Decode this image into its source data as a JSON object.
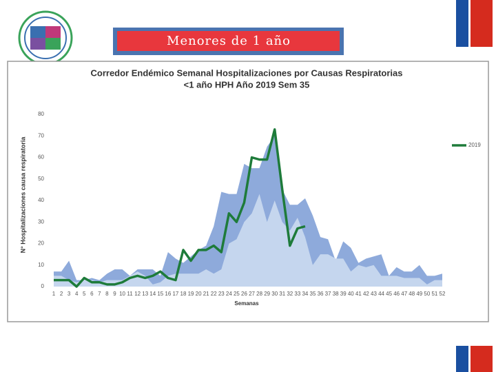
{
  "slide_title": "Menores de 1 año",
  "chart_data": {
    "type": "area",
    "title": "Corredor Endémico Semanal Hospitalizaciones por Causas Respiratorias",
    "subtitle": "<1 año HPH Año 2019 Sem 35",
    "xlabel": "Semanas",
    "ylabel": "N° Hospitalizaciones causa respiratoria",
    "categories": [
      "1",
      "2",
      "3",
      "4",
      "5",
      "6",
      "7",
      "8",
      "9",
      "10",
      "11",
      "12",
      "13",
      "14",
      "15",
      "16",
      "17",
      "18",
      "19",
      "20",
      "21",
      "22",
      "23",
      "24",
      "25",
      "26",
      "27",
      "28",
      "29",
      "30",
      "31",
      "32",
      "33",
      "34",
      "35",
      "36",
      "37",
      "38",
      "39",
      "40",
      "41",
      "42",
      "43",
      "44",
      "45",
      "46",
      "47",
      "48",
      "49",
      "50",
      "51",
      "52"
    ],
    "series": [
      {
        "color": "#8eaadb",
        "values": [
          7,
          7,
          12,
          3,
          3,
          4,
          3,
          6,
          8,
          8,
          5,
          8,
          8,
          8,
          5,
          16,
          13,
          11,
          14,
          17,
          19,
          28,
          44,
          43,
          43,
          57,
          55,
          55,
          65,
          70,
          45,
          38,
          38,
          41,
          33,
          23,
          22,
          12,
          21,
          18,
          11,
          13,
          14,
          15,
          5,
          9,
          7,
          7,
          10,
          5,
          5,
          6
        ]
      },
      {
        "color": "#c5d6ee",
        "values": [
          5,
          5,
          3,
          2,
          3,
          3,
          2,
          3,
          3,
          3,
          5,
          7,
          5,
          1,
          2,
          5,
          6,
          6,
          6,
          6,
          8,
          6,
          8,
          20,
          22,
          30,
          34,
          43,
          30,
          40,
          30,
          26,
          32,
          23,
          10,
          15,
          15,
          13,
          13,
          7,
          10,
          9,
          10,
          5,
          5,
          5,
          4,
          4,
          4,
          1,
          3,
          3
        ]
      },
      {
        "name": "2019",
        "color": "#1e7b3a",
        "line": true,
        "values": [
          3,
          3,
          3,
          0,
          4,
          2,
          2,
          1,
          1,
          2,
          4,
          5,
          4,
          5,
          7,
          4,
          3,
          17,
          12,
          17,
          17,
          19,
          16,
          34,
          30,
          39,
          60,
          59,
          59,
          73,
          45,
          19,
          27,
          28,
          null,
          null,
          null,
          null,
          null,
          null,
          null,
          null,
          null,
          null,
          null,
          null,
          null,
          null,
          null,
          null,
          null,
          null
        ]
      }
    ],
    "ylim": [
      0,
      80
    ],
    "yticks": [
      0,
      10,
      20,
      30,
      40,
      50,
      60,
      70,
      80
    ],
    "grid": false,
    "legend": "right"
  }
}
